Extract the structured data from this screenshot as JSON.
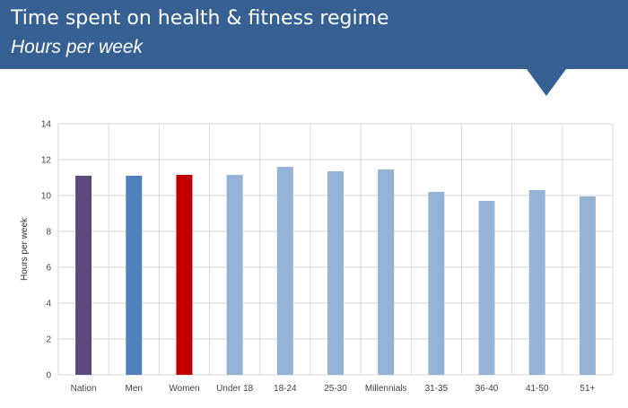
{
  "header": {
    "title": "Time spent on health & fitness regime",
    "subtitle": "Hours per week",
    "color": "#365f92"
  },
  "chart_data": {
    "type": "bar",
    "categories": [
      "Nation",
      "Men",
      "Women",
      "Under 18",
      "18-24",
      "25-30",
      "Millennials",
      "31-35",
      "36-40",
      "41-50",
      "51+"
    ],
    "values": [
      11.1,
      11.1,
      11.15,
      11.15,
      11.6,
      11.35,
      11.45,
      10.2,
      9.7,
      10.3,
      9.95
    ],
    "colors": [
      "#5f487c",
      "#4f81bd",
      "#c00000",
      "#95b3d7",
      "#95b3d7",
      "#95b3d7",
      "#95b3d7",
      "#95b3d7",
      "#95b3d7",
      "#95b3d7",
      "#95b3d7"
    ],
    "ylabel": "Hours per week",
    "xlabel": "",
    "ylim": [
      0,
      14
    ],
    "yticks": [
      0,
      2,
      4,
      6,
      8,
      10,
      12,
      14
    ],
    "grid": true
  }
}
